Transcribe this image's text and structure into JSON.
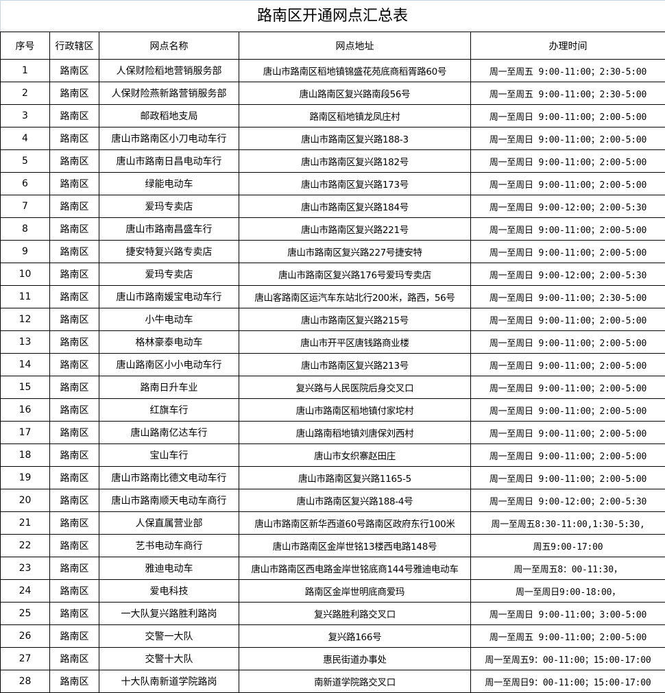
{
  "title": "路南区开通网点汇总表",
  "columns": [
    "序号",
    "行政辖区",
    "网点名称",
    "网点地址",
    "办理时间"
  ],
  "rows": [
    [
      "1",
      "路南区",
      "人保财险稻地营销服务部",
      "唐山市路南区稻地镇锦盛花苑底商稻胥路60号",
      "周一至周五 9:00-11:00；2:30-5:00"
    ],
    [
      "2",
      "路南区",
      "人保财险燕新路营销服务部",
      "唐山路南区复兴路南段56号",
      "周一至周五 9:00-11:00；2:30-5:00"
    ],
    [
      "3",
      "路南区",
      "邮政稻地支局",
      "路南区稻地镇龙凤庄村",
      "周一至周日 9:00-11:00；2:00-5:00"
    ],
    [
      "4",
      "路南区",
      "唐山市路南区小刀电动车行",
      "唐山市路南区复兴路188-3",
      "周一至周日 9:00-11:00；2:00-5:00"
    ],
    [
      "5",
      "路南区",
      "唐山市路南日昌电动车行",
      "唐山市路南区复兴路182号",
      "周一至周日 9:00-11:00；2:00-5:00"
    ],
    [
      "6",
      "路南区",
      "绿能电动车",
      "唐山市路南区复兴路173号",
      "周一至周日 9:00-11:00；2:00-5:00"
    ],
    [
      "7",
      "路南区",
      "爱玛专卖店",
      "唐山市路南区复兴路184号",
      "周一至周日 9:00-12:00；2:00-5:30"
    ],
    [
      "8",
      "路南区",
      "唐山市路南昌盛车行",
      "唐山市路南区复兴路221号",
      "周一至周日 9:00-11:00；2:00-5:00"
    ],
    [
      "9",
      "路南区",
      "捷安特复兴路专卖店",
      "唐山市路南区复兴路227号捷安特",
      "周一至周日 9:00-11:00；2:00-5:00"
    ],
    [
      "10",
      "路南区",
      "爱玛专卖店",
      "唐山市路南区复兴路176号爱玛专卖店",
      "周一至周日 9:00-12:00；2:00-5:30"
    ],
    [
      "11",
      "路南区",
      "唐山市路南媛宝电动车行",
      "唐山客路南区运汽车东站北行200米，路西，56号",
      "周一至周日 9:00-11:00；2:30-5:00"
    ],
    [
      "12",
      "路南区",
      "小牛电动车",
      "唐山市路南区复兴路215号",
      "周一至周日 9:00-11:00；2:00-5:00"
    ],
    [
      "13",
      "路南区",
      "格林豪泰电动车",
      "唐山市开平区唐钱路商业楼",
      "周一至周日 9:00-11:00；2:00-5:00"
    ],
    [
      "14",
      "路南区",
      "唐山路南区小小电动车行",
      "唐山市路南区复兴路213号",
      "周一至周日 9:00-11:00；2:00-5:00"
    ],
    [
      "15",
      "路南区",
      "路南日升车业",
      "复兴路与人民医院后身交叉口",
      "周一至周日 9:00-11:00；2:00-5:00"
    ],
    [
      "16",
      "路南区",
      "红旗车行",
      "唐山市路南区稻地镇付家坨村",
      "周一至周日 9:00-11:00；2:00-5:00"
    ],
    [
      "17",
      "路南区",
      "唐山路南亿达车行",
      "唐山路南稻地镇刘唐保刘西村",
      "周一至周日 9:00-11:00；2:00-5:00"
    ],
    [
      "18",
      "路南区",
      "宝山车行",
      "唐山市女织寨赵田庄",
      "周一至周日 9:00-11:00；2:00-5:00"
    ],
    [
      "19",
      "路南区",
      "唐山市路南比德文电动车行",
      "唐山市路南区复兴路1165-5",
      "周一至周日 9:00-11:00；2:00-5:00"
    ],
    [
      "20",
      "路南区",
      "唐山市路南顺天电动车商行",
      "唐山市路南区复兴路188-4号",
      "周一至周日 9:00-12:00；2:00-5:30"
    ],
    [
      "21",
      "路南区",
      "人保直属营业部",
      "唐山市路南区新华西道60号路南区政府东行100米",
      "周一至周五8:30-11:00,1:30-5:30,"
    ],
    [
      "22",
      "路南区",
      "艺书电动车商行",
      "唐山市路南区金岸世铭13楼西电路148号",
      "周五9:00-17:00"
    ],
    [
      "23",
      "路南区",
      "雅迪电动车",
      "唐山市路南区西电路金岸世铭底商144号雅迪电动车",
      "周一至周五8：00-11:30，"
    ],
    [
      "24",
      "路南区",
      "爱电科技",
      "路南区金岸世明底商爱玛",
      "周一至周日9:00-18:00，"
    ],
    [
      "25",
      "路南区",
      "一大队复兴路胜利路岗",
      "复兴路胜利路交叉口",
      "周一至周日 9:00-11:00；3:00-5:00"
    ],
    [
      "26",
      "路南区",
      "交警一大队",
      "复兴路166号",
      "周一至周五 9:00-11:00；2:00-5:00"
    ],
    [
      "27",
      "路南区",
      "交警十大队",
      "惠民街道办事处",
      "周一至周五9：00-11:00；15:00-17:00"
    ],
    [
      "28",
      "路南区",
      "十大队南新道学院路岗",
      "南新道学院路交叉口",
      "周一至周日9：00-11:00；15:00-17:00"
    ]
  ]
}
